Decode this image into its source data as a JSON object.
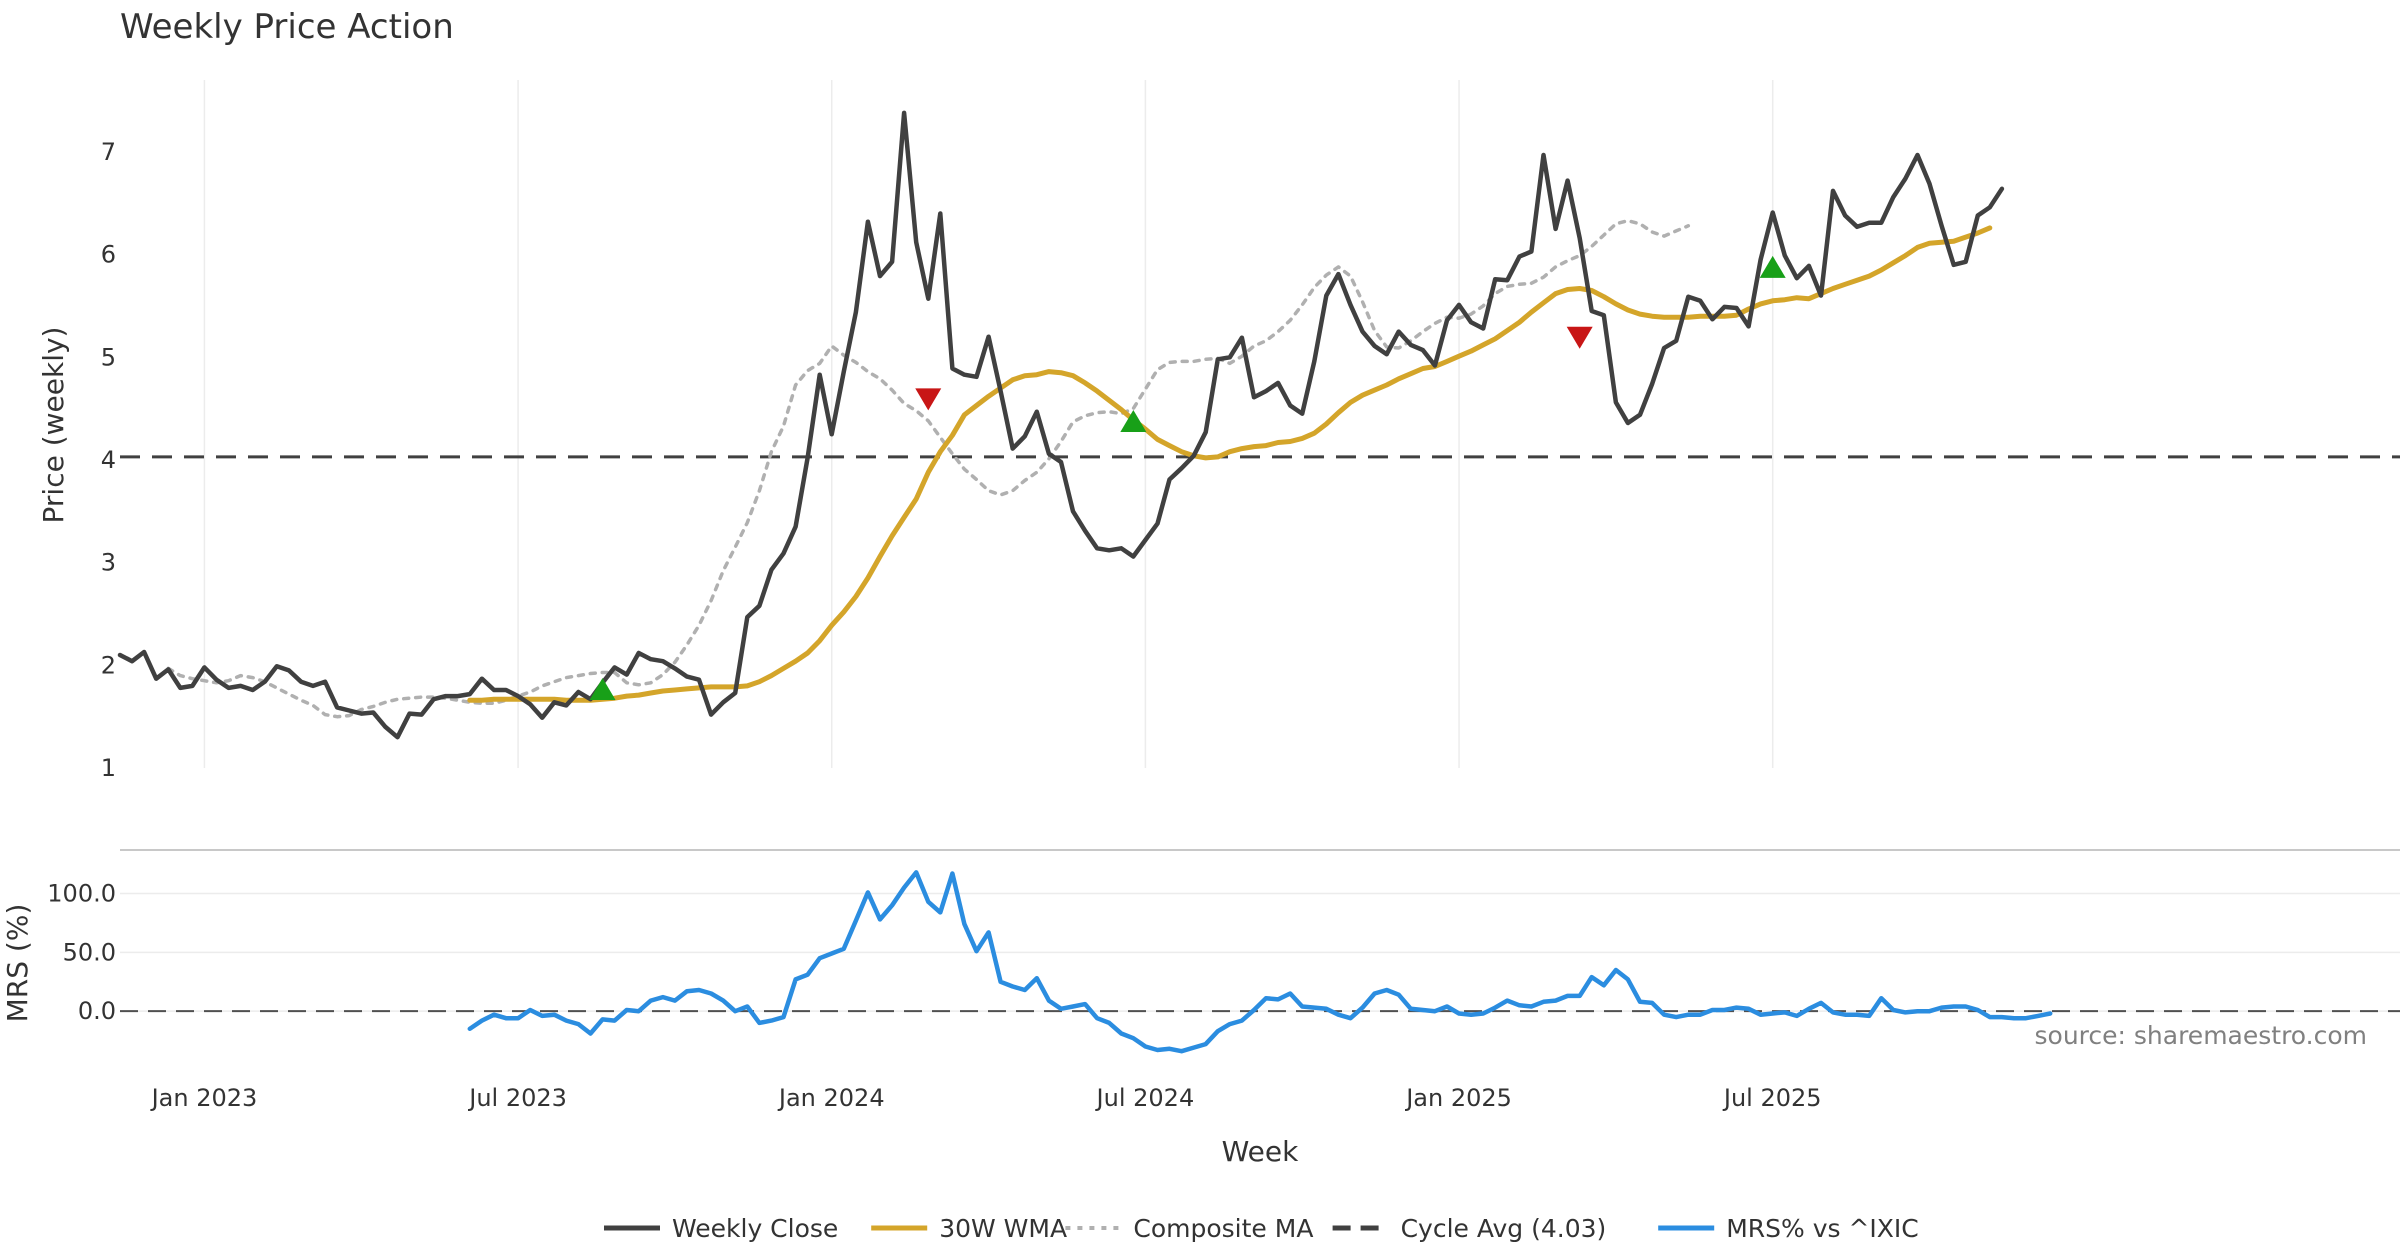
{
  "chart_data": {
    "type": "line",
    "title": "Weekly Price Action",
    "xlabel": "Week",
    "source": "source: sharemaestro.com",
    "x_ticks": [
      "Jan 2023",
      "Jul 2023",
      "Jan 2024",
      "Jul 2024",
      "Jan 2025",
      "Jul 2025"
    ],
    "x_tick_weeks": [
      3,
      29,
      55,
      81,
      107,
      133
    ],
    "week_range": [
      -4,
      185
    ],
    "price_panel": {
      "ylabel": "Price (weekly)",
      "ylim": [
        1,
        7.7
      ],
      "yticks": [
        1,
        2,
        3,
        4,
        5,
        6,
        7
      ],
      "grid": true,
      "cycle_avg": 4.03,
      "series": [
        {
          "name": "Weekly Close",
          "color": "#404040",
          "style": "solid",
          "start_week": -4,
          "values": [
            2.1,
            2.04,
            2.13,
            1.87,
            1.96,
            1.78,
            1.8,
            1.98,
            1.86,
            1.78,
            1.8,
            1.76,
            1.84,
            1.99,
            1.95,
            1.84,
            1.8,
            1.84,
            1.59,
            1.56,
            1.53,
            1.54,
            1.4,
            1.3,
            1.53,
            1.52,
            1.67,
            1.7,
            1.7,
            1.72,
            1.87,
            1.76,
            1.76,
            1.7,
            1.62,
            1.49,
            1.64,
            1.61,
            1.74,
            1.67,
            1.83,
            1.98,
            1.91,
            2.12,
            2.06,
            2.04,
            1.97,
            1.89,
            1.86,
            1.52,
            1.64,
            1.73,
            2.47,
            2.58,
            2.93,
            3.09,
            3.35,
            4.02,
            4.83,
            4.25,
            4.86,
            5.44,
            6.32,
            5.79,
            5.93,
            7.38,
            6.12,
            5.57,
            6.4,
            4.89,
            4.83,
            4.81,
            5.2,
            4.67,
            4.11,
            4.23,
            4.47,
            4.06,
            3.98,
            3.5,
            3.31,
            3.14,
            3.12,
            3.14,
            3.06,
            3.22,
            3.38,
            3.81,
            3.92,
            4.04,
            4.27,
            4.98,
            5.0,
            5.19,
            4.61,
            4.67,
            4.75,
            4.53,
            4.45,
            4.96,
            5.6,
            5.81,
            5.51,
            5.25,
            5.11,
            5.03,
            5.25,
            5.12,
            5.07,
            4.92,
            5.36,
            5.51,
            5.34,
            5.28,
            5.76,
            5.75,
            5.98,
            6.03,
            6.97,
            6.25,
            6.72,
            6.16,
            5.45,
            5.41,
            4.56,
            4.36,
            4.44,
            4.74,
            5.09,
            5.16,
            5.59,
            5.55,
            5.37,
            5.49,
            5.48,
            5.3,
            5.95,
            6.41,
            5.99,
            5.77,
            5.89,
            5.6,
            6.62,
            6.38,
            6.27,
            6.31,
            6.31,
            6.56,
            6.74,
            6.97,
            6.69,
            6.28,
            5.9,
            5.93,
            6.38,
            6.46,
            6.64
          ]
        },
        {
          "name": "30W WMA",
          "color": "#d4a52a",
          "style": "solid",
          "start_week": 25,
          "values": [
            1.66,
            1.66,
            1.67,
            1.67,
            1.67,
            1.67,
            1.67,
            1.67,
            1.66,
            1.66,
            1.66,
            1.67,
            1.68,
            1.7,
            1.71,
            1.73,
            1.75,
            1.76,
            1.77,
            1.78,
            1.79,
            1.79,
            1.79,
            1.8,
            1.84,
            1.9,
            1.97,
            2.04,
            2.12,
            2.24,
            2.39,
            2.52,
            2.67,
            2.85,
            3.06,
            3.26,
            3.44,
            3.62,
            3.88,
            4.08,
            4.24,
            4.44,
            4.53,
            4.62,
            4.7,
            4.78,
            4.82,
            4.83,
            4.86,
            4.85,
            4.82,
            4.75,
            4.67,
            4.58,
            4.49,
            4.39,
            4.3,
            4.2,
            4.14,
            4.08,
            4.04,
            4.02,
            4.03,
            4.08,
            4.11,
            4.13,
            4.14,
            4.17,
            4.18,
            4.21,
            4.26,
            4.35,
            4.46,
            4.56,
            4.63,
            4.68,
            4.73,
            4.79,
            4.84,
            4.89,
            4.91,
            4.96,
            5.01,
            5.06,
            5.12,
            5.18,
            5.26,
            5.34,
            5.44,
            5.53,
            5.62,
            5.66,
            5.67,
            5.65,
            5.59,
            5.52,
            5.46,
            5.42,
            5.4,
            5.39,
            5.39,
            5.39,
            5.4,
            5.4,
            5.4,
            5.41,
            5.47,
            5.52,
            5.55,
            5.56,
            5.58,
            5.57,
            5.62,
            5.67,
            5.71,
            5.75,
            5.79,
            5.85,
            5.92,
            5.99,
            6.07,
            6.11,
            6.12,
            6.13,
            6.17,
            6.21,
            6.26
          ]
        },
        {
          "name": "Composite MA",
          "color": "#b0b0b0",
          "style": "dotted",
          "start_week": 0,
          "values": [
            1.97,
            1.9,
            1.87,
            1.85,
            1.83,
            1.85,
            1.9,
            1.88,
            1.84,
            1.78,
            1.72,
            1.66,
            1.61,
            1.52,
            1.5,
            1.51,
            1.57,
            1.6,
            1.64,
            1.67,
            1.68,
            1.69,
            1.69,
            1.68,
            1.66,
            1.64,
            1.63,
            1.63,
            1.66,
            1.7,
            1.74,
            1.8,
            1.84,
            1.88,
            1.9,
            1.92,
            1.93,
            1.93,
            1.83,
            1.81,
            1.83,
            1.91,
            2.03,
            2.2,
            2.39,
            2.63,
            2.92,
            3.15,
            3.39,
            3.7,
            4.08,
            4.33,
            4.73,
            4.87,
            4.94,
            5.11,
            5.02,
            4.95,
            4.86,
            4.79,
            4.68,
            4.55,
            4.48,
            4.38,
            4.22,
            4.06,
            3.91,
            3.81,
            3.7,
            3.66,
            3.7,
            3.8,
            3.88,
            4.01,
            4.18,
            4.37,
            4.43,
            4.46,
            4.47,
            4.45,
            4.5,
            4.69,
            4.88,
            4.95,
            4.96,
            4.96,
            4.98,
            4.99,
            4.94,
            5.01,
            5.11,
            5.16,
            5.25,
            5.36,
            5.51,
            5.68,
            5.8,
            5.88,
            5.79,
            5.54,
            5.26,
            5.1,
            5.09,
            5.16,
            5.25,
            5.33,
            5.39,
            5.38,
            5.42,
            5.5,
            5.62,
            5.69,
            5.71,
            5.72,
            5.78,
            5.88,
            5.94,
            5.99,
            6.08,
            6.19,
            6.3,
            6.33,
            6.3,
            6.22,
            6.18,
            6.23,
            6.28
          ]
        }
      ],
      "signals": [
        {
          "type": "buy",
          "week": 36,
          "value": 1.76,
          "color": "#18a018"
        },
        {
          "type": "sell",
          "week": 63,
          "value": 4.6,
          "color": "#c81616"
        },
        {
          "type": "buy",
          "week": 80,
          "value": 4.37,
          "color": "#18a018"
        },
        {
          "type": "sell",
          "week": 117,
          "value": 5.2,
          "color": "#c81616"
        },
        {
          "type": "buy",
          "week": 133,
          "value": 5.87,
          "color": "#18a018"
        }
      ]
    },
    "mrs_panel": {
      "ylabel": "MRS (%)",
      "ylim": [
        -50,
        137
      ],
      "yticks": [
        0,
        50,
        100
      ],
      "ytick_labels": [
        "0.0",
        "50.0",
        "100.0"
      ],
      "series": {
        "name": "MRS% vs ^IXIC",
        "color": "#2b8de0",
        "start_week": 25,
        "values": [
          -15,
          -8,
          -3,
          -6,
          -6,
          1,
          -4,
          -3,
          -8,
          -11,
          -19,
          -7,
          -8,
          1,
          0,
          9,
          12,
          9,
          17,
          18,
          15,
          9,
          0,
          4,
          -10,
          -8,
          -5,
          27,
          31,
          45,
          49,
          53,
          77,
          101,
          78,
          90,
          105,
          118,
          93,
          84,
          117,
          74,
          51,
          67,
          25,
          21,
          18,
          28,
          9,
          2,
          4,
          6,
          -6,
          -10,
          -19,
          -23,
          -30,
          -33,
          -32,
          -34,
          -31,
          -28,
          -17,
          -11,
          -8,
          1,
          11,
          10,
          15,
          4,
          3,
          2,
          -3,
          -6,
          3,
          15,
          18,
          14,
          2,
          1,
          0,
          4,
          -2,
          -3,
          -2,
          3,
          9,
          5,
          4,
          8,
          9,
          13,
          13,
          29,
          22,
          35,
          27,
          8,
          7,
          -3,
          -5,
          -3,
          -3,
          1,
          1,
          3,
          2,
          -3,
          -2,
          -1,
          -4,
          2,
          7,
          -1,
          -3,
          -3,
          -4,
          11,
          1,
          -1,
          0,
          0,
          3,
          4,
          4,
          1,
          -5,
          -5,
          -6,
          -6,
          -4,
          -2
        ]
      }
    },
    "legend": {
      "placement": "bottom",
      "items": [
        {
          "label": "Weekly Close",
          "color": "#404040",
          "style": "solid"
        },
        {
          "label": "30W WMA",
          "color": "#d4a52a",
          "style": "solid"
        },
        {
          "label": "Composite MA",
          "color": "#b0b0b0",
          "style": "dotted"
        },
        {
          "label": "Cycle Avg (4.03)",
          "color": "#404040",
          "style": "dashed"
        },
        {
          "label": "MRS% vs ^IXIC",
          "color": "#2b8de0",
          "style": "solid"
        }
      ]
    }
  }
}
